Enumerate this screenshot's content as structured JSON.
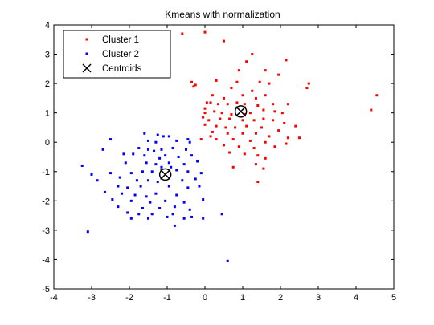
{
  "chart_data": {
    "type": "scatter",
    "title": "Kmeans with normalization",
    "xlabel": "",
    "ylabel": "",
    "xlim": [
      -4,
      5
    ],
    "ylim": [
      -5,
      4
    ],
    "xticks": [
      -4,
      -3,
      -2,
      -1,
      0,
      1,
      2,
      3,
      4,
      5
    ],
    "yticks": [
      -5,
      -4,
      -3,
      -2,
      -1,
      0,
      1,
      2,
      3,
      4
    ],
    "grid": false,
    "legend_position": "top-left",
    "series": [
      {
        "name": "Cluster 1",
        "color": "#ff0000",
        "marker": "point",
        "points": [
          [
            -0.6,
            3.7
          ],
          [
            0.0,
            3.75
          ],
          [
            0.5,
            3.45
          ],
          [
            -1.1,
            2.3
          ],
          [
            1.25,
            3.0
          ],
          [
            1.1,
            2.75
          ],
          [
            0.9,
            2.45
          ],
          [
            2.15,
            2.8
          ],
          [
            1.6,
            2.45
          ],
          [
            1.95,
            2.3
          ],
          [
            2.75,
            2.0
          ],
          [
            2.7,
            1.85
          ],
          [
            -0.35,
            2.05
          ],
          [
            -0.3,
            1.9
          ],
          [
            -0.25,
            1.95
          ],
          [
            0.3,
            2.1
          ],
          [
            0.85,
            2.05
          ],
          [
            1.45,
            2.05
          ],
          [
            1.7,
            2.0
          ],
          [
            0.7,
            1.85
          ],
          [
            1.25,
            1.75
          ],
          [
            0.2,
            1.6
          ],
          [
            1.0,
            1.6
          ],
          [
            1.6,
            1.6
          ],
          [
            1.35,
            1.5
          ],
          [
            0.5,
            1.5
          ],
          [
            0.05,
            1.35
          ],
          [
            0.15,
            1.35
          ],
          [
            0.35,
            1.3
          ],
          [
            0.6,
            1.3
          ],
          [
            0.85,
            1.35
          ],
          [
            1.05,
            1.3
          ],
          [
            1.4,
            1.25
          ],
          [
            1.8,
            1.3
          ],
          [
            2.2,
            1.3
          ],
          [
            1.55,
            1.1
          ],
          [
            1.85,
            1.05
          ],
          [
            0.0,
            1.15
          ],
          [
            0.25,
            1.05
          ],
          [
            0.45,
            1.0
          ],
          [
            0.7,
            0.95
          ],
          [
            1.2,
            1.0
          ],
          [
            2.05,
            1.0
          ],
          [
            -0.05,
            0.85
          ],
          [
            0.1,
            0.75
          ],
          [
            0.4,
            0.8
          ],
          [
            0.65,
            0.8
          ],
          [
            1.0,
            0.75
          ],
          [
            1.3,
            0.75
          ],
          [
            1.55,
            0.8
          ],
          [
            1.8,
            0.75
          ],
          [
            2.1,
            0.65
          ],
          [
            0.0,
            0.6
          ],
          [
            0.3,
            0.55
          ],
          [
            0.55,
            0.5
          ],
          [
            0.8,
            0.5
          ],
          [
            1.1,
            0.55
          ],
          [
            1.5,
            0.5
          ],
          [
            1.95,
            0.4
          ],
          [
            2.4,
            0.55
          ],
          [
            0.2,
            0.35
          ],
          [
            0.6,
            0.3
          ],
          [
            1.0,
            0.3
          ],
          [
            1.35,
            0.3
          ],
          [
            1.7,
            0.2
          ],
          [
            2.5,
            0.15
          ],
          [
            -0.1,
            0.1
          ],
          [
            0.3,
            0.1
          ],
          [
            0.75,
            0.1
          ],
          [
            1.2,
            0.05
          ],
          [
            1.6,
            0.0
          ],
          [
            2.15,
            -0.05
          ],
          [
            0.5,
            -0.1
          ],
          [
            0.9,
            -0.15
          ],
          [
            1.3,
            -0.2
          ],
          [
            1.85,
            -0.15
          ],
          [
            0.65,
            -0.35
          ],
          [
            1.05,
            -0.4
          ],
          [
            1.4,
            -0.45
          ],
          [
            1.6,
            -0.55
          ],
          [
            0.75,
            -0.85
          ],
          [
            1.55,
            -0.9
          ],
          [
            1.35,
            -0.75
          ],
          [
            1.4,
            -1.35
          ],
          [
            2.2,
            0.15
          ],
          [
            4.55,
            1.6
          ],
          [
            4.4,
            1.1
          ],
          [
            0.0,
            1.0
          ],
          [
            0.15,
            0.2
          ],
          [
            1.05,
            0.95
          ]
        ]
      },
      {
        "name": "Cluster 2",
        "color": "#0000ff",
        "marker": "point",
        "points": [
          [
            -1.6,
            0.3
          ],
          [
            -1.25,
            0.25
          ],
          [
            -1.1,
            0.2
          ],
          [
            -0.95,
            0.2
          ],
          [
            -2.5,
            0.1
          ],
          [
            -0.45,
            0.1
          ],
          [
            -1.5,
            0.05
          ],
          [
            -1.3,
            0.0
          ],
          [
            -0.75,
            0.05
          ],
          [
            -0.4,
            0.0
          ],
          [
            -2.7,
            -0.25
          ],
          [
            -1.75,
            -0.2
          ],
          [
            -1.5,
            -0.25
          ],
          [
            -1.35,
            -0.3
          ],
          [
            -1.15,
            -0.25
          ],
          [
            -0.85,
            -0.2
          ],
          [
            -0.5,
            -0.25
          ],
          [
            -2.15,
            -0.4
          ],
          [
            -1.9,
            -0.4
          ],
          [
            -1.6,
            -0.45
          ],
          [
            -1.05,
            -0.45
          ],
          [
            -0.7,
            -0.5
          ],
          [
            -0.35,
            -0.45
          ],
          [
            -1.2,
            -0.55
          ],
          [
            -3.25,
            -0.8
          ],
          [
            -2.1,
            -0.7
          ],
          [
            -1.55,
            -0.7
          ],
          [
            -1.3,
            -0.75
          ],
          [
            -0.95,
            -0.7
          ],
          [
            -0.55,
            -0.75
          ],
          [
            -0.2,
            -0.65
          ],
          [
            -3.0,
            -1.1
          ],
          [
            -2.5,
            -1.05
          ],
          [
            -1.95,
            -1.05
          ],
          [
            -1.65,
            -1.0
          ],
          [
            -1.4,
            -1.0
          ],
          [
            -0.75,
            -0.95
          ],
          [
            -0.45,
            -1.0
          ],
          [
            -0.1,
            -1.05
          ],
          [
            -2.85,
            -1.3
          ],
          [
            -2.25,
            -1.2
          ],
          [
            -1.8,
            -1.3
          ],
          [
            -1.5,
            -1.3
          ],
          [
            -1.25,
            -1.35
          ],
          [
            -0.6,
            -1.3
          ],
          [
            -0.25,
            -1.25
          ],
          [
            -2.3,
            -1.5
          ],
          [
            -2.05,
            -1.55
          ],
          [
            -1.7,
            -1.5
          ],
          [
            -0.95,
            -1.5
          ],
          [
            -0.45,
            -1.55
          ],
          [
            -0.15,
            -1.5
          ],
          [
            -2.65,
            -1.7
          ],
          [
            -2.2,
            -1.75
          ],
          [
            -1.85,
            -1.8
          ],
          [
            -1.55,
            -1.85
          ],
          [
            -1.3,
            -1.75
          ],
          [
            -0.75,
            -1.8
          ],
          [
            -2.45,
            -1.95
          ],
          [
            -1.95,
            -2.0
          ],
          [
            -1.45,
            -2.05
          ],
          [
            -1.05,
            -2.0
          ],
          [
            -0.55,
            -2.05
          ],
          [
            -0.05,
            -1.95
          ],
          [
            -2.3,
            -2.2
          ],
          [
            -1.65,
            -2.25
          ],
          [
            -1.2,
            -2.25
          ],
          [
            -0.8,
            -2.2
          ],
          [
            -0.4,
            -2.3
          ],
          [
            -2.05,
            -2.4
          ],
          [
            -1.75,
            -2.45
          ],
          [
            -1.4,
            -2.45
          ],
          [
            -0.85,
            -2.45
          ],
          [
            -0.35,
            -2.55
          ],
          [
            -1.95,
            -2.6
          ],
          [
            -1.5,
            -2.6
          ],
          [
            -1.0,
            -2.55
          ],
          [
            -0.55,
            -2.6
          ],
          [
            -0.05,
            -2.6
          ],
          [
            -0.8,
            -2.85
          ],
          [
            -3.1,
            -3.05
          ],
          [
            0.45,
            -2.45
          ],
          [
            0.6,
            -4.05
          ],
          [
            -0.9,
            -0.85
          ],
          [
            -1.15,
            -0.85
          ]
        ]
      },
      {
        "name": "Centroids",
        "color": "#000000",
        "marker": "x-circle",
        "points": [
          [
            0.95,
            1.05
          ],
          [
            -1.05,
            -1.1
          ]
        ]
      }
    ],
    "legend": [
      {
        "label": "Cluster 1",
        "marker": "point",
        "color": "#ff0000"
      },
      {
        "label": "Cluster 2",
        "marker": "point",
        "color": "#0000ff"
      },
      {
        "label": "Centroids",
        "marker": "x",
        "color": "#000000"
      }
    ]
  }
}
